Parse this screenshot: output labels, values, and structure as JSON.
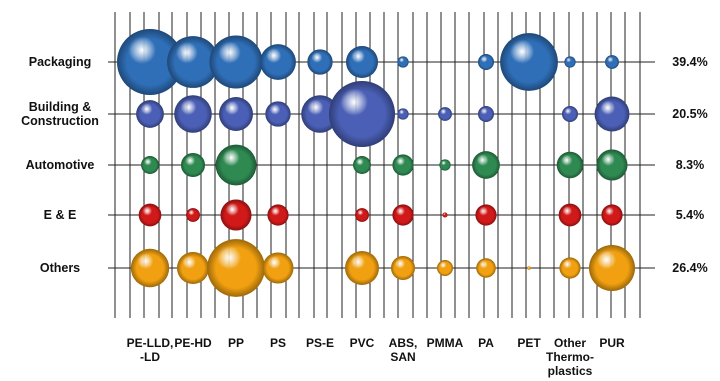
{
  "chart_data": {
    "type": "bubble",
    "title": "",
    "xlabel": "",
    "ylabel": "",
    "grid": true,
    "columns": [
      [
        "PE-LLD,",
        "-LD"
      ],
      [
        "PE-HD"
      ],
      [
        "PP"
      ],
      [
        "PS"
      ],
      [
        "PS-E"
      ],
      [
        "PVC"
      ],
      [
        "ABS,",
        "SAN"
      ],
      [
        "PMMA"
      ],
      [
        "PA"
      ],
      [
        "PET"
      ],
      [
        "Other",
        "Thermo-",
        "plastics"
      ],
      [
        "PUR"
      ]
    ],
    "rows": [
      [
        "Packaging"
      ],
      [
        "Building &",
        "Construction"
      ],
      [
        "Automotive"
      ],
      [
        "E & E"
      ],
      [
        "Others"
      ]
    ],
    "row_totals": [
      "39.4%",
      "20.5%",
      "8.3%",
      "5.4%",
      "26.4%"
    ],
    "row_colors": [
      "#2f6fb8",
      "#4a5fb5",
      "#2f8a52",
      "#d11919",
      "#f0a010"
    ],
    "values": [
      [
        34,
        21,
        22,
        10,
        5,
        8,
        1,
        0,
        2,
        26,
        1,
        1.5
      ],
      [
        6,
        11,
        9,
        5,
        11,
        34,
        1,
        1.5,
        2,
        0,
        2,
        9.5
      ],
      [
        2.5,
        4.5,
        13,
        0,
        0,
        2.5,
        3.5,
        1,
        6,
        0,
        5.5,
        7.5
      ],
      [
        4,
        1.5,
        7.5,
        3.5,
        0,
        1.5,
        3.5,
        0.2,
        3.5,
        0,
        4,
        3.5
      ],
      [
        11.5,
        8,
        26,
        7.5,
        0,
        9,
        4.5,
        2,
        3,
        0.1,
        3.5,
        16.5
      ]
    ]
  }
}
